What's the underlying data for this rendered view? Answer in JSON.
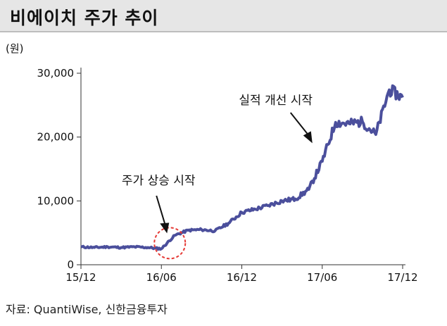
{
  "header": {
    "title": "비에이치 주가 추이"
  },
  "source": "자료: QuantiWise, 신한금융투자",
  "colors": {
    "series": "#4b4f9c",
    "circle": "#e53935",
    "title_band": "#e6e6e6"
  },
  "chart_data": {
    "type": "line",
    "unit_label": "(원)",
    "ylim": [
      0,
      30000
    ],
    "yticks": [
      0,
      10000,
      20000,
      30000
    ],
    "ytick_labels": [
      "0",
      "10,000",
      "20,000",
      "30,000"
    ],
    "xlim": [
      "2015-12",
      "2017-12"
    ],
    "xticks": [
      "2015-12",
      "2016-06",
      "2016-12",
      "2017-06",
      "2017-12"
    ],
    "xtick_labels": [
      "15/12",
      "16/06",
      "16/12",
      "17/06",
      "17/12"
    ],
    "grid": false,
    "series": [
      {
        "x": [
          "2015-12",
          "2016-01",
          "2016-02",
          "2016-03",
          "2016-04",
          "2016-05",
          "2016-06",
          "2016-07",
          "2016-08",
          "2016-09",
          "2016-10",
          "2016-11",
          "2016-12",
          "2017-01",
          "2017-02",
          "2017-03",
          "2017-04",
          "2017-05",
          "2017-06",
          "2017-07",
          "2017-08",
          "2017-09",
          "2017-10",
          "2017-11",
          "2017-12"
        ],
        "values": [
          2800,
          2700,
          2800,
          2700,
          2800,
          2700,
          2500,
          4600,
          5400,
          5500,
          5300,
          6500,
          8200,
          8700,
          9300,
          10000,
          10300,
          11800,
          16200,
          22300,
          22100,
          22400,
          20400,
          27400,
          26200
        ]
      }
    ],
    "annotations": [
      {
        "text": "주가 상승 시작",
        "x": "2016-06",
        "y": 2500
      },
      {
        "text": "실적 개선 시작",
        "x": "2017-06",
        "y": 17500
      }
    ]
  }
}
